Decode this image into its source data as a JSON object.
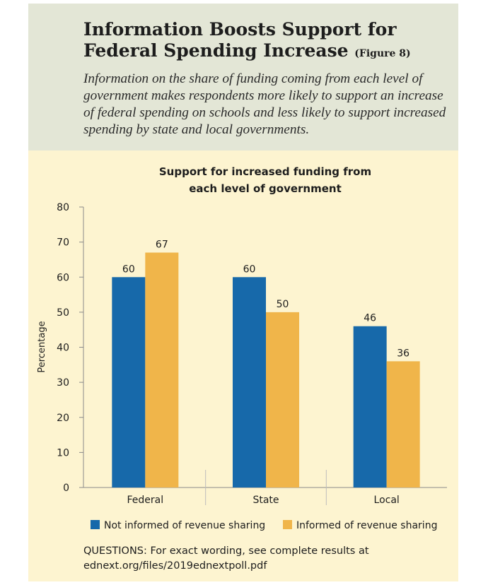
{
  "header": {
    "title_main": "Information Boosts Support for Federal Spending Increase",
    "title_figure": "(Figure 8)",
    "subtitle": "Information on the share of funding coming from each level of government makes respondents more likely to support an increase of federal spending on schools and less likely to support increased spending by state and local governments."
  },
  "chart_data": {
    "type": "bar",
    "title_lines": [
      "Support for increased funding from",
      "each level of government"
    ],
    "categories": [
      "Federal",
      "State",
      "Local"
    ],
    "series": [
      {
        "name": "Not informed of revenue sharing",
        "color": "#1769aa",
        "values": [
          60,
          60,
          46
        ]
      },
      {
        "name": "Informed of revenue sharing",
        "color": "#f0b54a",
        "values": [
          67,
          50,
          36
        ]
      }
    ],
    "xlabel": "",
    "ylabel": "Percentage",
    "ylim": [
      0,
      80
    ],
    "yticks": [
      0,
      10,
      20,
      30,
      40,
      50,
      60,
      70,
      80
    ],
    "grid": false,
    "legend": "bottom"
  },
  "footer": {
    "questions": "QUESTIONS: For exact wording, see complete results at ednext.org/files/2019ednextpoll.pdf"
  }
}
